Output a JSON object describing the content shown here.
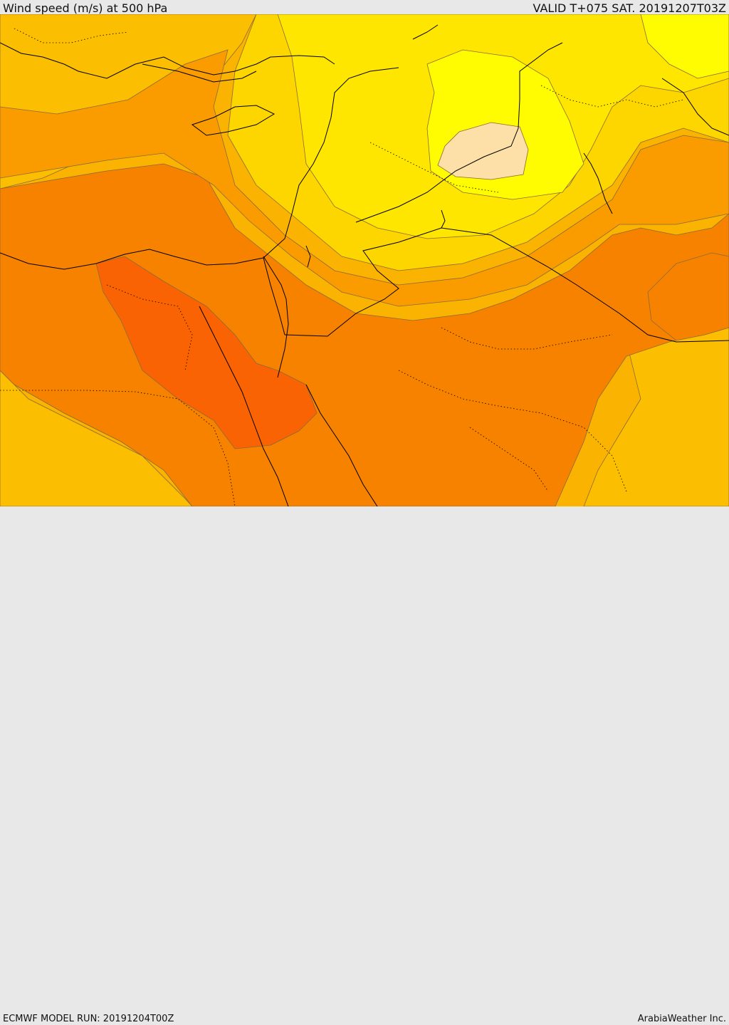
{
  "header": {
    "title": "Wind speed (m/s) at 500 hPa",
    "valid": "VALID T+075 SAT. 20191207T03Z"
  },
  "footer": {
    "model_run": "ECMWF MODEL RUN: 20191204T00Z",
    "brand": "ArabiaWeather Inc."
  },
  "map": {
    "colors": {
      "background": "#fbb302",
      "light_orange": "#fcbe00",
      "yellow_orange": "#fdd600",
      "pale_yellow": "#ffe600",
      "bright_yellow": "#fffb00",
      "cream": "#fde0a8",
      "orange": "#fa9c00",
      "dark_orange": "#f78200",
      "red_orange": "#f96303",
      "contour": "#8a6a3a",
      "coast": "#000000"
    }
  }
}
